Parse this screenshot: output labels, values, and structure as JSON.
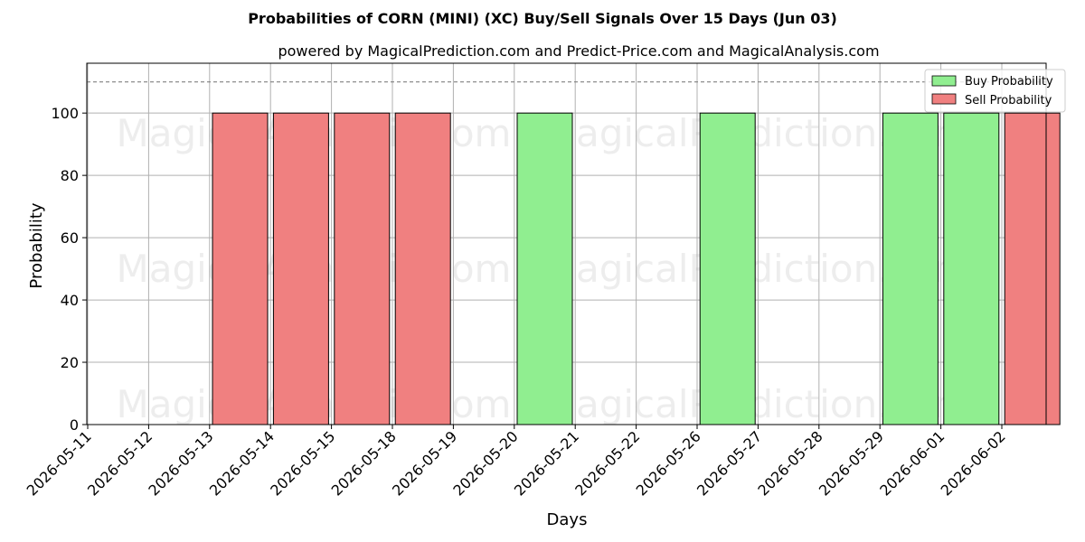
{
  "chart_data": {
    "type": "bar",
    "title": "Probabilities of CORN (MINI) (XC) Buy/Sell Signals Over 15 Days (Jun 03)",
    "subtitle": "powered by MagicalPrediction.com and Predict-Price.com and MagicalAnalysis.com",
    "xlabel": "Days",
    "ylabel": "Probability",
    "ylim": [
      0,
      116
    ],
    "yticks": [
      0,
      20,
      40,
      60,
      80,
      100
    ],
    "reference_line": 110,
    "grid": true,
    "legend_position": "top-right",
    "categories": [
      "2026-05-11",
      "2026-05-12",
      "2026-05-13",
      "2026-05-14",
      "2026-05-15",
      "2026-05-18",
      "2026-05-19",
      "2026-05-20",
      "2026-05-21",
      "2026-05-22",
      "2026-05-26",
      "2026-05-27",
      "2026-05-28",
      "2026-05-29",
      "2026-06-01",
      "2026-06-02"
    ],
    "series": [
      {
        "name": "Buy Probability",
        "color": "#90ee90",
        "values": [
          0,
          0,
          0,
          0,
          0,
          0,
          0,
          100,
          0,
          0,
          100,
          0,
          0,
          100,
          100,
          0
        ]
      },
      {
        "name": "Sell Probability",
        "color": "#f08080",
        "values": [
          0,
          0,
          100,
          100,
          100,
          100,
          0,
          0,
          0,
          0,
          0,
          0,
          0,
          0,
          0,
          100
        ]
      }
    ],
    "watermarks": [
      "MagicalAnalysis.com",
      "MagicalPrediction.com"
    ]
  }
}
